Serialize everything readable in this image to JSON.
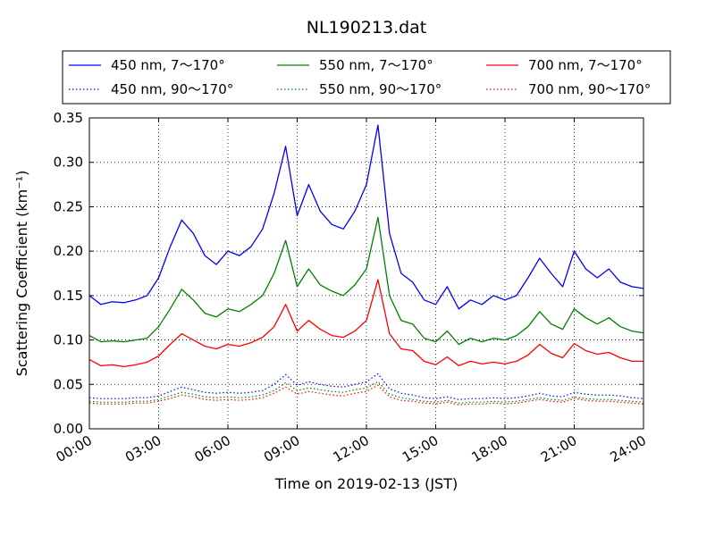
{
  "chart_data": {
    "type": "line",
    "title": "NL190213.dat",
    "xlabel": "Time on 2019-02-13 (JST)",
    "ylabel": "Scattering Coefficient (km⁻¹)",
    "x_tick_labels": [
      "00:00",
      "03:00",
      "06:00",
      "09:00",
      "12:00",
      "15:00",
      "18:00",
      "21:00",
      "24:00"
    ],
    "y_tick_labels": [
      "0.00",
      "0.05",
      "0.10",
      "0.15",
      "0.20",
      "0.25",
      "0.30",
      "0.35"
    ],
    "xlim_hours": [
      0,
      24
    ],
    "ylim": [
      0,
      0.35
    ],
    "grid": true,
    "legend_placement": "top, above plot",
    "x_hours": [
      0,
      0.5,
      1,
      1.5,
      2,
      2.5,
      3,
      3.5,
      4,
      4.5,
      5,
      5.5,
      6,
      6.5,
      7,
      7.5,
      8,
      8.5,
      9,
      9.5,
      10,
      10.5,
      11,
      11.5,
      12,
      12.5,
      13,
      13.5,
      14,
      14.5,
      15,
      15.5,
      16,
      16.5,
      17,
      17.5,
      18,
      18.5,
      19,
      19.5,
      20,
      20.5,
      21,
      21.5,
      22,
      22.5,
      23,
      23.5,
      24
    ],
    "series": [
      {
        "name": "450 nm, 7～170°",
        "color": "#0000ff",
        "style": "solid",
        "values": [
          0.15,
          0.14,
          0.143,
          0.142,
          0.145,
          0.15,
          0.17,
          0.205,
          0.235,
          0.22,
          0.195,
          0.185,
          0.2,
          0.195,
          0.205,
          0.225,
          0.265,
          0.318,
          0.24,
          0.275,
          0.245,
          0.23,
          0.225,
          0.245,
          0.275,
          0.342,
          0.22,
          0.175,
          0.165,
          0.145,
          0.14,
          0.16,
          0.135,
          0.145,
          0.14,
          0.15,
          0.145,
          0.15,
          0.17,
          0.192,
          0.175,
          0.16,
          0.2,
          0.18,
          0.17,
          0.18,
          0.165,
          0.16,
          0.158
        ]
      },
      {
        "name": "550 nm, 7～170°",
        "color": "#008000",
        "style": "solid",
        "values": [
          0.105,
          0.098,
          0.099,
          0.098,
          0.1,
          0.102,
          0.115,
          0.135,
          0.157,
          0.145,
          0.13,
          0.126,
          0.135,
          0.132,
          0.14,
          0.15,
          0.175,
          0.212,
          0.16,
          0.18,
          0.162,
          0.155,
          0.15,
          0.162,
          0.18,
          0.238,
          0.15,
          0.122,
          0.118,
          0.102,
          0.098,
          0.11,
          0.095,
          0.102,
          0.098,
          0.102,
          0.1,
          0.105,
          0.115,
          0.132,
          0.118,
          0.112,
          0.135,
          0.125,
          0.118,
          0.125,
          0.115,
          0.11,
          0.108
        ]
      },
      {
        "name": "700 nm, 7～170°",
        "color": "#ff0000",
        "style": "solid",
        "values": [
          0.078,
          0.071,
          0.072,
          0.07,
          0.072,
          0.075,
          0.082,
          0.095,
          0.107,
          0.1,
          0.093,
          0.09,
          0.095,
          0.093,
          0.097,
          0.103,
          0.115,
          0.14,
          0.11,
          0.122,
          0.112,
          0.105,
          0.103,
          0.11,
          0.122,
          0.168,
          0.107,
          0.09,
          0.088,
          0.076,
          0.072,
          0.081,
          0.071,
          0.076,
          0.073,
          0.075,
          0.073,
          0.076,
          0.083,
          0.095,
          0.085,
          0.08,
          0.096,
          0.088,
          0.084,
          0.086,
          0.08,
          0.076,
          0.076
        ]
      },
      {
        "name": "450 nm, 90～170°",
        "color": "#0000ff",
        "style": "dotted",
        "values": [
          0.035,
          0.034,
          0.034,
          0.034,
          0.035,
          0.035,
          0.037,
          0.042,
          0.047,
          0.044,
          0.041,
          0.04,
          0.041,
          0.04,
          0.041,
          0.043,
          0.05,
          0.061,
          0.049,
          0.053,
          0.05,
          0.048,
          0.047,
          0.05,
          0.053,
          0.062,
          0.045,
          0.04,
          0.038,
          0.035,
          0.034,
          0.036,
          0.033,
          0.034,
          0.034,
          0.035,
          0.034,
          0.035,
          0.037,
          0.04,
          0.037,
          0.036,
          0.041,
          0.039,
          0.038,
          0.038,
          0.037,
          0.035,
          0.034
        ]
      },
      {
        "name": "550 nm, 90～170°",
        "color": "#008000",
        "style": "dotted",
        "values": [
          0.031,
          0.03,
          0.03,
          0.03,
          0.031,
          0.031,
          0.033,
          0.037,
          0.041,
          0.039,
          0.036,
          0.035,
          0.036,
          0.035,
          0.036,
          0.038,
          0.043,
          0.052,
          0.043,
          0.046,
          0.044,
          0.042,
          0.041,
          0.044,
          0.046,
          0.053,
          0.039,
          0.035,
          0.033,
          0.031,
          0.03,
          0.032,
          0.029,
          0.03,
          0.03,
          0.031,
          0.03,
          0.031,
          0.033,
          0.035,
          0.033,
          0.032,
          0.036,
          0.034,
          0.033,
          0.033,
          0.032,
          0.031,
          0.03
        ]
      },
      {
        "name": "700 nm, 90～170°",
        "color": "#ff0000",
        "style": "dotted",
        "values": [
          0.029,
          0.028,
          0.028,
          0.028,
          0.029,
          0.029,
          0.031,
          0.034,
          0.038,
          0.036,
          0.033,
          0.032,
          0.033,
          0.032,
          0.033,
          0.035,
          0.04,
          0.047,
          0.039,
          0.042,
          0.04,
          0.038,
          0.037,
          0.04,
          0.042,
          0.049,
          0.036,
          0.032,
          0.031,
          0.029,
          0.028,
          0.03,
          0.027,
          0.028,
          0.028,
          0.029,
          0.028,
          0.029,
          0.031,
          0.033,
          0.031,
          0.03,
          0.034,
          0.032,
          0.031,
          0.031,
          0.03,
          0.029,
          0.028
        ]
      }
    ]
  }
}
